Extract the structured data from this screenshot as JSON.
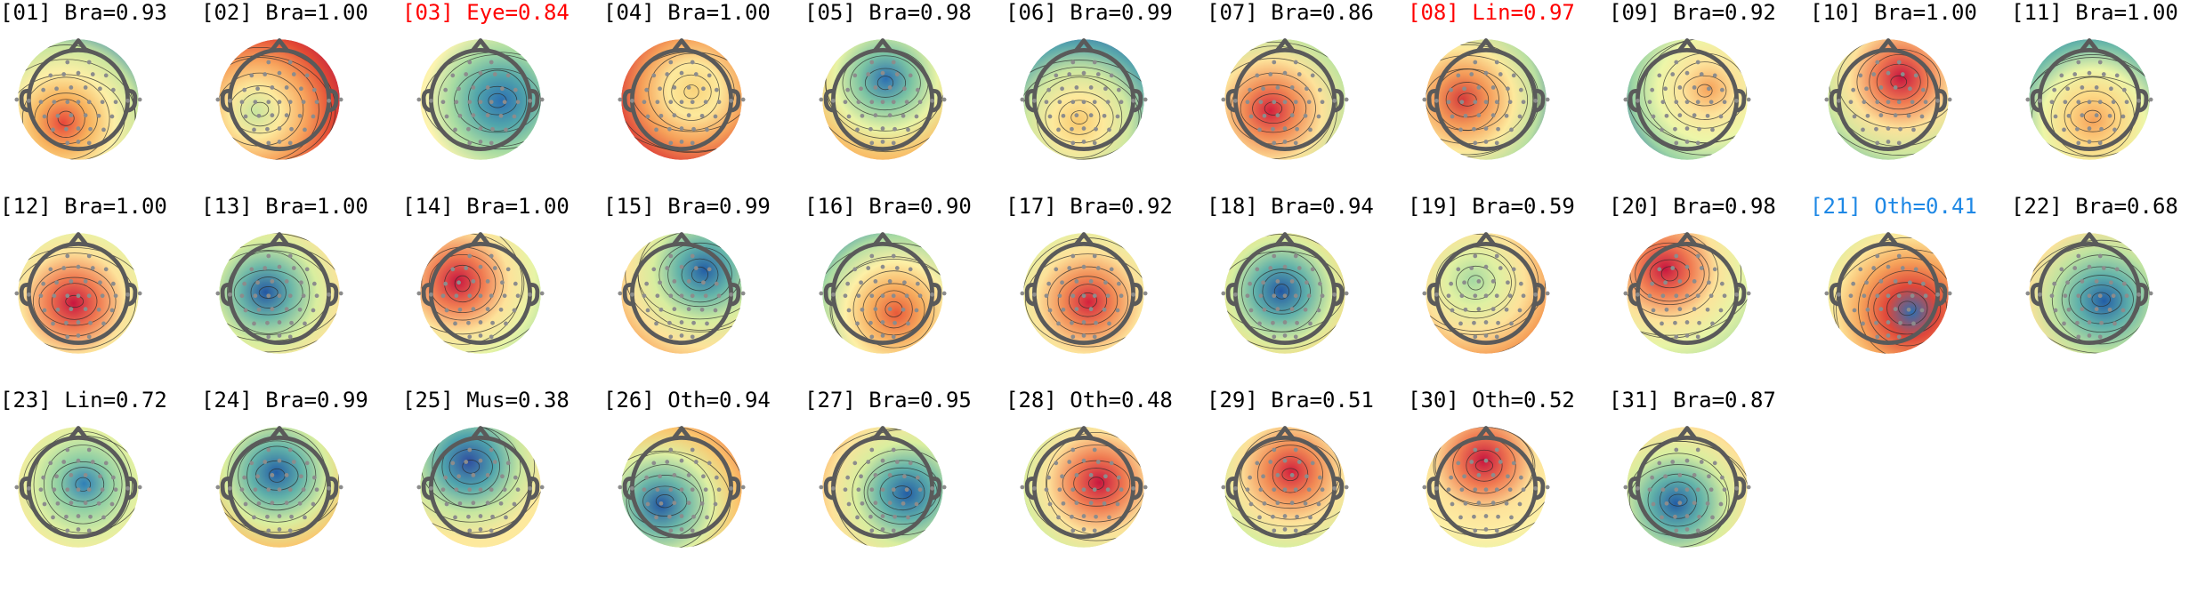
{
  "figure": {
    "colors": {
      "default_label": "#000000",
      "eye_label": "#ff0000",
      "line_label": "#ff0000",
      "other_label": "#1e88e5",
      "head_outline": "#5a5a5a",
      "sensor": "#8c8c8c",
      "contour": "#2b2b2b"
    },
    "components": [
      {
        "index": "01",
        "title": "[01] Bra=0.93",
        "label": "Bra",
        "prob": 0.93,
        "highlight": "none",
        "colors": [
          "#e8463a",
          "#f7b05b",
          "#fdefa6",
          "#c9e69d",
          "#2f7fb7"
        ]
      },
      {
        "index": "02",
        "title": "[02] Bra=1.00",
        "label": "Bra",
        "prob": 1.0,
        "highlight": "none",
        "colors": [
          "#c8e59e",
          "#fde99c",
          "#f7a35c",
          "#e44a33",
          "#b3124a"
        ]
      },
      {
        "index": "03",
        "title": "[03] Eye=0.84",
        "label": "Eye",
        "prob": 0.84,
        "highlight": "eye",
        "colors": [
          "#2c6fb2",
          "#52a6ab",
          "#a8dca2",
          "#fdf4b0",
          "#fce38a"
        ]
      },
      {
        "index": "04",
        "title": "[04] Bra=1.00",
        "label": "Bra",
        "prob": 1.0,
        "highlight": "none",
        "colors": [
          "#f9d37b",
          "#fde99c",
          "#f6a25a",
          "#e0473a",
          "#b40f4a"
        ]
      },
      {
        "index": "05",
        "title": "[05] Bra=0.98",
        "label": "Bra",
        "prob": 0.98,
        "highlight": "none",
        "colors": [
          "#2c6fb2",
          "#7cc4a3",
          "#e8f3a5",
          "#f8c26c",
          "#f59a56"
        ]
      },
      {
        "index": "06",
        "title": "[06] Bra=0.99",
        "label": "Bra",
        "prob": 0.99,
        "highlight": "none",
        "colors": [
          "#f8c96f",
          "#fde99c",
          "#cfe8a0",
          "#5aa8ac",
          "#2a57a8"
        ]
      },
      {
        "index": "07",
        "title": "[07] Bra=0.86",
        "label": "Bra",
        "prob": 0.86,
        "highlight": "none",
        "colors": [
          "#d3213d",
          "#f18b55",
          "#fde29a",
          "#c5e49e",
          "#86c8a5"
        ]
      },
      {
        "index": "08",
        "title": "[08] Lin=0.97",
        "label": "Lin",
        "prob": 0.97,
        "highlight": "line",
        "colors": [
          "#d53a3a",
          "#f49a58",
          "#fde99c",
          "#b9e0a1",
          "#2e62ae"
        ]
      },
      {
        "index": "09",
        "title": "[09] Bra=0.92",
        "label": "Bra",
        "prob": 0.92,
        "highlight": "none",
        "colors": [
          "#f6a25a",
          "#fde29a",
          "#edf6a8",
          "#9bd4a4",
          "#2b66ae"
        ]
      },
      {
        "index": "10",
        "title": "[10] Bra=1.00",
        "label": "Bra",
        "prob": 1.0,
        "highlight": "none",
        "colors": [
          "#c8163f",
          "#f07c52",
          "#fde29a",
          "#cde79f",
          "#6bb6a8"
        ]
      },
      {
        "index": "11",
        "title": "[11] Bra=1.00",
        "label": "Bra",
        "prob": 1.0,
        "highlight": "none",
        "colors": [
          "#f6a25a",
          "#fdd885",
          "#edf6a8",
          "#6dbaa8",
          "#1f6fa4"
        ]
      },
      {
        "index": "12",
        "title": "[12] Bra=1.00",
        "label": "Bra",
        "prob": 1.0,
        "highlight": "none",
        "colors": [
          "#c8163f",
          "#f07c52",
          "#fde29a",
          "#e7f4a6",
          "#a8dba2"
        ]
      },
      {
        "index": "13",
        "title": "[13] Bra=1.00",
        "label": "Bra",
        "prob": 1.0,
        "highlight": "none",
        "colors": [
          "#2357a3",
          "#6bb6a8",
          "#d9ee9f",
          "#fde29a",
          "#f49a58"
        ]
      },
      {
        "index": "14",
        "title": "[14] Bra=1.00",
        "label": "Bra",
        "prob": 1.0,
        "highlight": "none",
        "colors": [
          "#c8163f",
          "#f07c52",
          "#fde29a",
          "#e7f4a6",
          "#9fd7a3"
        ]
      },
      {
        "index": "15",
        "title": "[15] Bra=0.99",
        "label": "Bra",
        "prob": 0.99,
        "highlight": "none",
        "colors": [
          "#235ea6",
          "#63b3a9",
          "#d7ed9f",
          "#fde29a",
          "#f6a25a"
        ]
      },
      {
        "index": "16",
        "title": "[16] Bra=0.90",
        "label": "Bra",
        "prob": 0.9,
        "highlight": "none",
        "colors": [
          "#e85a3a",
          "#f7ac5e",
          "#fdf0a6",
          "#a9dba2",
          "#2f7fb7"
        ]
      },
      {
        "index": "17",
        "title": "[17] Bra=0.92",
        "label": "Bra",
        "prob": 0.92,
        "highlight": "none",
        "colors": [
          "#d3213d",
          "#f18b55",
          "#fde29a",
          "#e3f2a4",
          "#b0dda1"
        ]
      },
      {
        "index": "18",
        "title": "[18] Bra=0.94",
        "label": "Bra",
        "prob": 0.94,
        "highlight": "none",
        "colors": [
          "#2357a3",
          "#5fb0aa",
          "#d9ee9f",
          "#fdd885",
          "#f49a58"
        ]
      },
      {
        "index": "19",
        "title": "[19] Bra=0.59",
        "label": "Bra",
        "prob": 0.59,
        "highlight": "none",
        "colors": [
          "#a4d8a2",
          "#dff0a2",
          "#fde29a",
          "#f6a25a",
          "#e44a33"
        ]
      },
      {
        "index": "20",
        "title": "[20] Bra=0.98",
        "label": "Bra",
        "prob": 0.98,
        "highlight": "none",
        "colors": [
          "#c8163f",
          "#f07c52",
          "#fde29a",
          "#e7f4a6",
          "#b7dfa1"
        ]
      },
      {
        "index": "21",
        "title": "[21] Oth=0.41",
        "label": "Oth",
        "prob": 0.41,
        "highlight": "other",
        "colors": [
          "#2c6fb2",
          "#e0473a",
          "#f6a25a",
          "#fde99c",
          "#d9ee9f"
        ]
      },
      {
        "index": "22",
        "title": "[22] Bra=0.68",
        "label": "Bra",
        "prob": 0.68,
        "highlight": "none",
        "colors": [
          "#235ea6",
          "#5fb0aa",
          "#bfe3a0",
          "#fde29a",
          "#e44a33"
        ]
      },
      {
        "index": "23",
        "title": "[23] Lin=0.72",
        "label": "Lin",
        "prob": 0.72,
        "highlight": "none",
        "colors": [
          "#2f7fb7",
          "#8fcfa4",
          "#dff0a2",
          "#fde99c",
          "#fce38a"
        ]
      },
      {
        "index": "24",
        "title": "[24] Bra=0.99",
        "label": "Bra",
        "prob": 0.99,
        "highlight": "none",
        "colors": [
          "#235ea6",
          "#63b3a9",
          "#d9ee9f",
          "#fbc46c",
          "#ee7a4e"
        ]
      },
      {
        "index": "25",
        "title": "[25] Mus=0.38",
        "label": "Mus",
        "prob": 0.38,
        "highlight": "none",
        "colors": [
          "#2f4ea0",
          "#4fa4ad",
          "#c7e7a0",
          "#fde99c",
          "#fce9a0"
        ]
      },
      {
        "index": "26",
        "title": "[26] Oth=0.94",
        "label": "Oth",
        "prob": 0.94,
        "highlight": "none",
        "colors": [
          "#2357a3",
          "#6bb6a8",
          "#dff0a2",
          "#fbc46c",
          "#ee7a4e"
        ]
      },
      {
        "index": "27",
        "title": "[27] Bra=0.95",
        "label": "Bra",
        "prob": 0.95,
        "highlight": "none",
        "colors": [
          "#235ea6",
          "#5fb0aa",
          "#d9ee9f",
          "#fde29a",
          "#f6a25a"
        ]
      },
      {
        "index": "28",
        "title": "[28] Oth=0.48",
        "label": "Oth",
        "prob": 0.48,
        "highlight": "none",
        "colors": [
          "#c8163f",
          "#f07c52",
          "#fde29a",
          "#d9ee9f",
          "#9fd7a3"
        ]
      },
      {
        "index": "29",
        "title": "[29] Bra=0.51",
        "label": "Bra",
        "prob": 0.51,
        "highlight": "none",
        "colors": [
          "#d3213d",
          "#f18b55",
          "#fde29a",
          "#d9ee9f",
          "#8fcfa4"
        ]
      },
      {
        "index": "30",
        "title": "[30] Oth=0.52",
        "label": "Oth",
        "prob": 0.52,
        "highlight": "none",
        "colors": [
          "#c8163f",
          "#f07c52",
          "#fde29a",
          "#fdf0a6",
          "#e3f2a4"
        ]
      },
      {
        "index": "31",
        "title": "[31] Bra=0.87",
        "label": "Bra",
        "prob": 0.87,
        "highlight": "none",
        "colors": [
          "#235ea6",
          "#63b3a9",
          "#d9ee9f",
          "#fde29a",
          "#f6a25a"
        ]
      }
    ]
  }
}
